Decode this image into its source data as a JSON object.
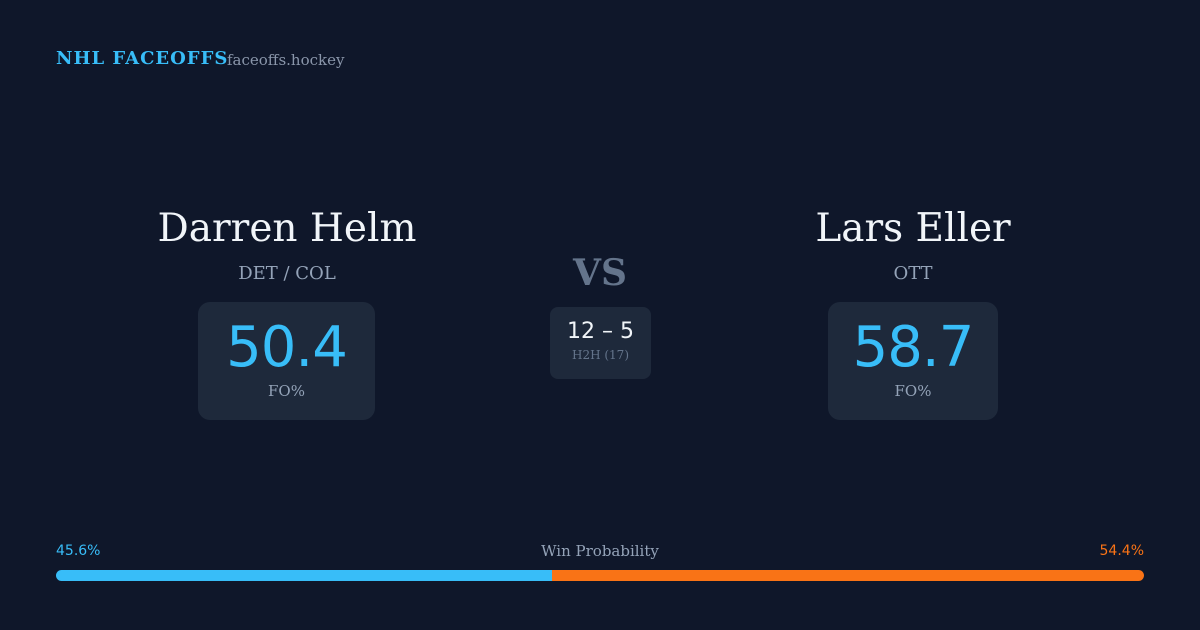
{
  "header": {
    "brand": "NHL FACEOFFS",
    "site": "faceoffs.hockey"
  },
  "players": [
    {
      "name": "Darren Helm",
      "team": "DET / COL",
      "stat": "50.4",
      "stat_label": "FO%"
    },
    {
      "name": "Lars Eller",
      "team": "OTT",
      "stat": "58.7",
      "stat_label": "FO%"
    }
  ],
  "versus": {
    "label": "VS",
    "record": "12 – 5",
    "record_label": "H2H (17)"
  },
  "win_probability": {
    "title": "Win Probability",
    "left": {
      "value": 45.6,
      "label": "45.6%",
      "color": "#38bdf8"
    },
    "right": {
      "value": 54.4,
      "label": "54.4%",
      "color": "#f97316"
    }
  }
}
